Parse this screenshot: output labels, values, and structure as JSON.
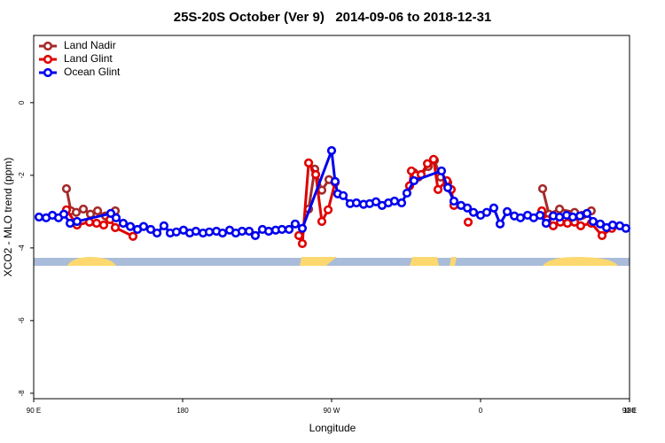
{
  "chart_data": {
    "type": "line",
    "title": "25S-20S October (Ver 9)   2014-09-06 to 2018-12-31",
    "x_label": "Longitude",
    "y_label": "XCO2 - MLO trend (ppm)",
    "xlim": [
      90,
      450
    ],
    "xticks": [
      {
        "value": 90,
        "label": "90 E"
      },
      {
        "value": 180,
        "label": "180"
      },
      {
        "value": 270,
        "label": "90 W"
      },
      {
        "value": 360,
        "label": "0"
      },
      {
        "value": 450,
        "label": "90 E"
      },
      {
        "value": 540,
        "label": "180"
      }
    ],
    "ylim": [
      -8.15,
      1.85
    ],
    "yticks": [
      0,
      -2,
      -4,
      -6,
      -8
    ],
    "legend": "top-left",
    "series": [
      {
        "name": "Land Nadir",
        "color": "#a52a2a",
        "x": [
          109.8,
          112.5,
          115.7,
          120.0,
          124.3,
          128.6,
          133.4,
          139.3,
          null,
          256.1,
          259.8,
          264.1,
          268.4,
          null,
          317.1,
          319.8,
          322.5,
          328.4,
          332.1,
          335.9,
          340.2,
          null,
          397.5,
          401.3,
          407.7,
          416.8,
          421.6,
          426.9
        ],
        "values": [
          -2.37,
          -2.98,
          -3.02,
          -2.93,
          -3.07,
          -2.98,
          -3.12,
          -2.98,
          null,
          -2.93,
          -1.83,
          -2.41,
          -2.12,
          null,
          -2.29,
          -1.93,
          -2.05,
          -1.76,
          -1.59,
          -2.05,
          -2.2,
          null,
          -2.37,
          -3.07,
          -2.93,
          -3.02,
          -3.1,
          -2.98
        ]
      },
      {
        "name": "Land Glint",
        "color": "#e00000",
        "x": [
          109.8,
          116.2,
          123.7,
          128.0,
          132.3,
          136.1,
          139.3,
          150.0,
          null,
          250.2,
          252.3,
          256.1,
          260.4,
          264.1,
          267.9,
          272.1,
          null,
          317.1,
          318.2,
          320.9,
          324.1,
          327.9,
          331.6,
          334.3,
          339.6,
          342.3,
          343.9,
          null,
          352.5,
          null,
          397.0,
          400.2,
          403.9,
          408.2,
          412.5,
          416.8,
          420.5,
          426.9,
          433.4,
          439.3
        ],
        "values": [
          -2.95,
          -3.37,
          -3.29,
          -3.32,
          -3.37,
          -3.22,
          -3.44,
          -3.68,
          null,
          -3.66,
          -3.88,
          -1.66,
          -1.98,
          -3.27,
          -2.95,
          -2.2,
          null,
          -2.29,
          -1.88,
          -2.0,
          -1.98,
          -1.68,
          -1.56,
          -2.39,
          -2.15,
          -2.39,
          -2.83,
          null,
          -3.29,
          null,
          -2.98,
          -3.22,
          -3.39,
          -3.29,
          -3.32,
          -3.29,
          -3.39,
          -3.32,
          -3.66,
          -3.46
        ]
      },
      {
        "name": "Ocean Glint",
        "color": "#0000ee",
        "x": [
          93.2,
          97.5,
          101.3,
          105.0,
          108.2,
          112.0,
          116.2,
          136.6,
          139.8,
          144.1,
          148.4,
          152.7,
          156.4,
          160.7,
          164.5,
          168.7,
          172.5,
          176.2,
          180.5,
          184.3,
          188.0,
          192.3,
          196.1,
          200.4,
          204.1,
          208.4,
          212.1,
          215.9,
          220.2,
          223.9,
          228.2,
          232.0,
          236.2,
          240.0,
          244.3,
          248.0,
          252.3,
          270.0,
          272.1,
          273.7,
          277.0,
          281.2,
          285.0,
          289.3,
          293.0,
          296.8,
          300.5,
          304.3,
          308.0,
          312.3,
          315.5,
          319.8,
          336.4,
          340.2,
          343.9,
          348.2,
          352.0,
          355.7,
          360.0,
          363.7,
          368.0,
          371.8,
          376.1,
          380.4,
          384.1,
          388.4,
          392.1,
          395.9,
          399.6,
          403.9,
          407.7,
          412.0,
          415.7,
          420.0,
          424.3,
          428.0,
          432.3,
          436.1,
          439.8,
          444.1,
          447.8
        ],
        "values": [
          -3.15,
          -3.17,
          -3.1,
          -3.17,
          -3.07,
          -3.32,
          -3.27,
          -3.05,
          -3.17,
          -3.32,
          -3.41,
          -3.49,
          -3.41,
          -3.49,
          -3.59,
          -3.39,
          -3.59,
          -3.56,
          -3.51,
          -3.59,
          -3.54,
          -3.59,
          -3.56,
          -3.54,
          -3.59,
          -3.51,
          -3.59,
          -3.54,
          -3.54,
          -3.66,
          -3.49,
          -3.54,
          -3.51,
          -3.49,
          -3.49,
          -3.34,
          -3.46,
          -1.32,
          -2.17,
          -2.51,
          -2.56,
          -2.78,
          -2.76,
          -2.8,
          -2.78,
          -2.73,
          -2.83,
          -2.76,
          -2.71,
          -2.76,
          -2.49,
          -2.15,
          -1.88,
          -2.34,
          -2.71,
          -2.83,
          -2.9,
          -3.02,
          -3.1,
          -3.02,
          -2.9,
          -3.34,
          -3.0,
          -3.12,
          -3.17,
          -3.1,
          -3.17,
          -3.1,
          -3.32,
          -3.12,
          -3.15,
          -3.1,
          -3.15,
          -3.12,
          -3.05,
          -3.27,
          -3.34,
          -3.44,
          -3.37,
          -3.39,
          -3.46
        ]
      }
    ]
  }
}
